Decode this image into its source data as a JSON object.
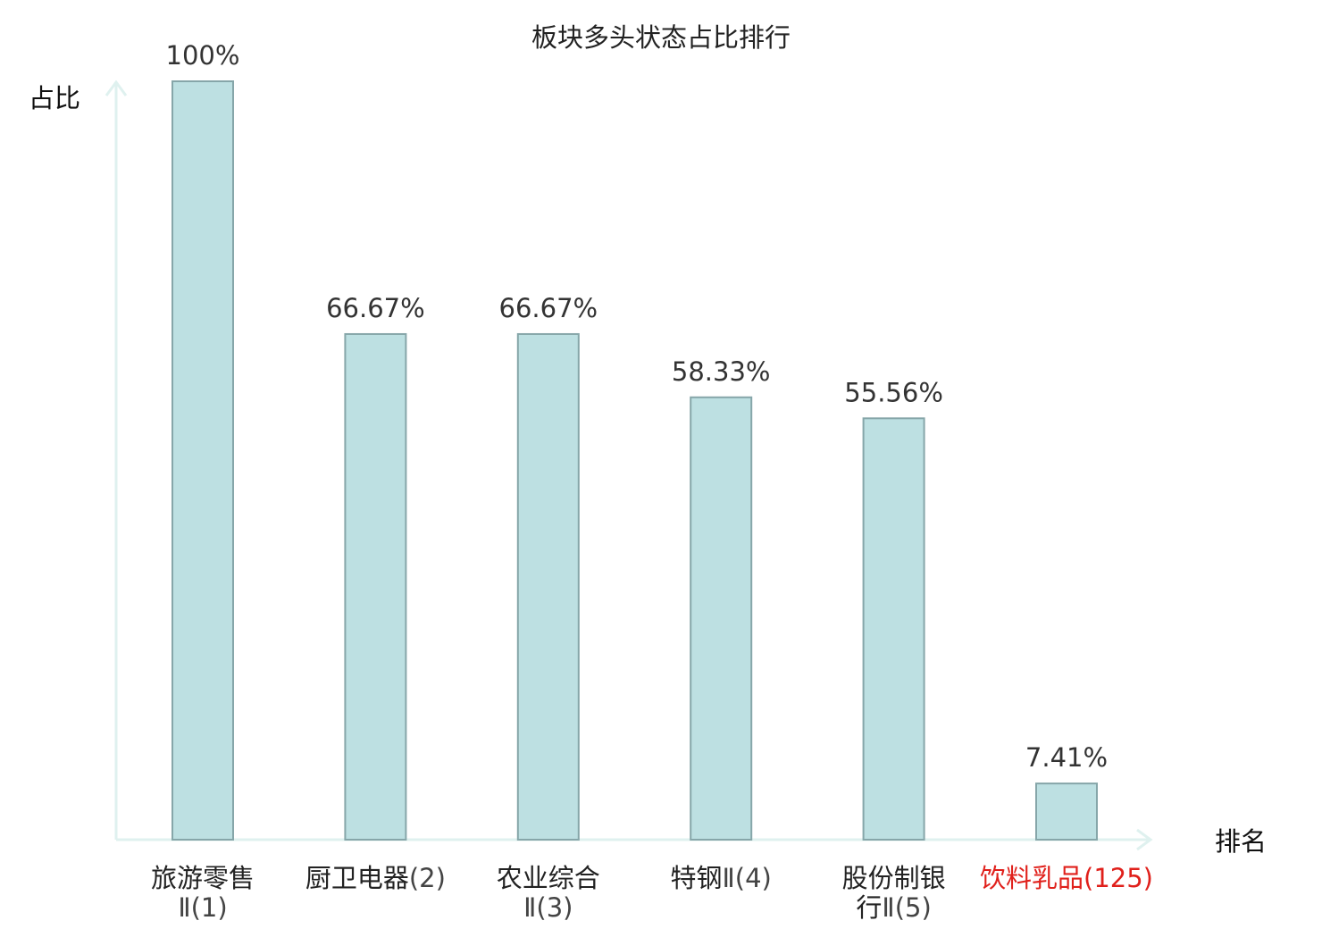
{
  "chart_data": {
    "type": "bar",
    "title": "板块多头状态占比排行",
    "ylabel": "占比",
    "xlabel": "排名",
    "ylim": [
      0,
      100
    ],
    "grid": false,
    "categories": [
      {
        "lines": [
          {
            "name": "旅游零售",
            "rank": ""
          },
          {
            "name": "",
            "rank": "Ⅱ(1)"
          }
        ],
        "highlight": false
      },
      {
        "lines": [
          {
            "name": "厨卫电器",
            "rank": "(2)"
          }
        ],
        "highlight": false
      },
      {
        "lines": [
          {
            "name": "农业综合",
            "rank": ""
          },
          {
            "name": "",
            "rank": "Ⅱ(3)"
          }
        ],
        "highlight": false
      },
      {
        "lines": [
          {
            "name": "特钢",
            "rank": "Ⅱ(4)"
          }
        ],
        "highlight": false
      },
      {
        "lines": [
          {
            "name": "股份制银",
            "rank": ""
          },
          {
            "name": "行",
            "rank": "Ⅱ(5)"
          }
        ],
        "highlight": false
      },
      {
        "lines": [
          {
            "name": "饮料乳品",
            "rank": "(125)"
          }
        ],
        "highlight": true
      }
    ],
    "values": [
      100,
      66.67,
      66.67,
      58.33,
      55.56,
      7.41
    ],
    "value_labels": [
      "100%",
      "66.67%",
      "66.67%",
      "58.33%",
      "55.56%",
      "7.41%"
    ],
    "colors": {
      "bar_fill": "#bde0e2",
      "bar_stroke": "#86a6a9",
      "axis": "#dff1ef",
      "highlight_text": "#e0201b"
    }
  }
}
